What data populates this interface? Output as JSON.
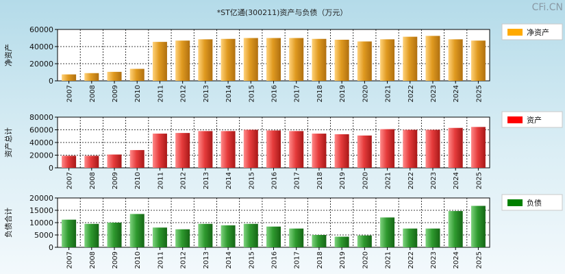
{
  "chart_data": {
    "title": "*ST亿通(300211)资产与负债（万元）",
    "brand": "CFi.CN",
    "categories": [
      "2007",
      "2008",
      "2009",
      "2010",
      "2011",
      "2012",
      "2013",
      "2014",
      "2015",
      "2016",
      "2017",
      "2018",
      "2019",
      "2020",
      "2021",
      "2022",
      "2023",
      "2024",
      "2025"
    ],
    "panels": [
      {
        "type": "bar",
        "ylabel": "净资产",
        "legend": "净资产",
        "color": "#ffaa00",
        "ylim": [
          0,
          60000
        ],
        "yticks": [
          0,
          20000,
          40000,
          60000
        ],
        "values": [
          7500,
          9000,
          10500,
          14000,
          45500,
          47000,
          48500,
          49000,
          50000,
          50000,
          50000,
          49000,
          48000,
          46000,
          48500,
          51500,
          52500,
          48500,
          47000
        ]
      },
      {
        "type": "bar",
        "ylabel": "资产总计",
        "legend": "资产",
        "color": "#ff0000",
        "ylim": [
          0,
          80000
        ],
        "yticks": [
          0,
          20000,
          40000,
          60000,
          80000
        ],
        "values": [
          19000,
          19000,
          21000,
          28000,
          54000,
          55000,
          58000,
          58000,
          60000,
          59000,
          58000,
          54000,
          53000,
          51000,
          61000,
          60000,
          60000,
          63000,
          64500
        ]
      },
      {
        "type": "bar",
        "ylabel": "负债合计",
        "legend": "负债",
        "color": "#008000",
        "ylim": [
          0,
          20000
        ],
        "yticks": [
          0,
          5000,
          10000,
          15000,
          20000
        ],
        "values": [
          11200,
          9500,
          10000,
          13500,
          8000,
          7300,
          9500,
          8900,
          9500,
          8400,
          7600,
          5000,
          4300,
          4800,
          12100,
          7600,
          7600,
          14700,
          16800
        ]
      }
    ]
  }
}
